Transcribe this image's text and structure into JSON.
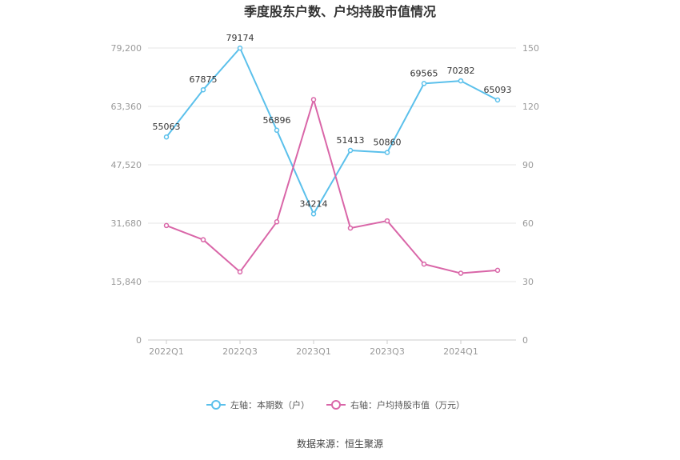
{
  "chart_data": {
    "type": "line",
    "title": "季度股东户数、户均持股市值情况",
    "source": "数据来源：恒生聚源",
    "categories": [
      "2022Q1",
      "2022Q2",
      "2022Q3",
      "2022Q4",
      "2023Q1",
      "2023Q2",
      "2023Q3",
      "2023Q4",
      "2024Q1",
      "2024Q2"
    ],
    "x_tick_labels": [
      "2022Q1",
      "2022Q3",
      "2023Q1",
      "2023Q3",
      "2024Q1"
    ],
    "left_axis": {
      "min": 0,
      "max": 79200,
      "ticks": [
        "0",
        "15,840",
        "31,680",
        "47,520",
        "63,360",
        "79,200"
      ]
    },
    "right_axis": {
      "min": 0,
      "max": 150,
      "ticks": [
        "0",
        "30",
        "60",
        "90",
        "120",
        "150"
      ]
    },
    "series": [
      {
        "name": "左轴：本期数（户）",
        "axis": "left",
        "color": "#5bc0eb",
        "values": [
          55063,
          67875,
          79174,
          56896,
          34214,
          51413,
          50860,
          69565,
          70282,
          65093
        ],
        "labels": [
          "55063",
          "67875",
          "79174",
          "56896",
          "34214",
          "51413",
          "50860",
          "69565",
          "70282",
          "65093"
        ]
      },
      {
        "name": "右轴：户均持股市值（万元）",
        "axis": "right",
        "color": "#d966a8",
        "values": [
          58.8,
          51.5,
          35,
          60.7,
          123.5,
          57.5,
          61.2,
          39,
          34.3,
          35.8
        ]
      }
    ],
    "grid": true,
    "legend_position": "bottom"
  }
}
